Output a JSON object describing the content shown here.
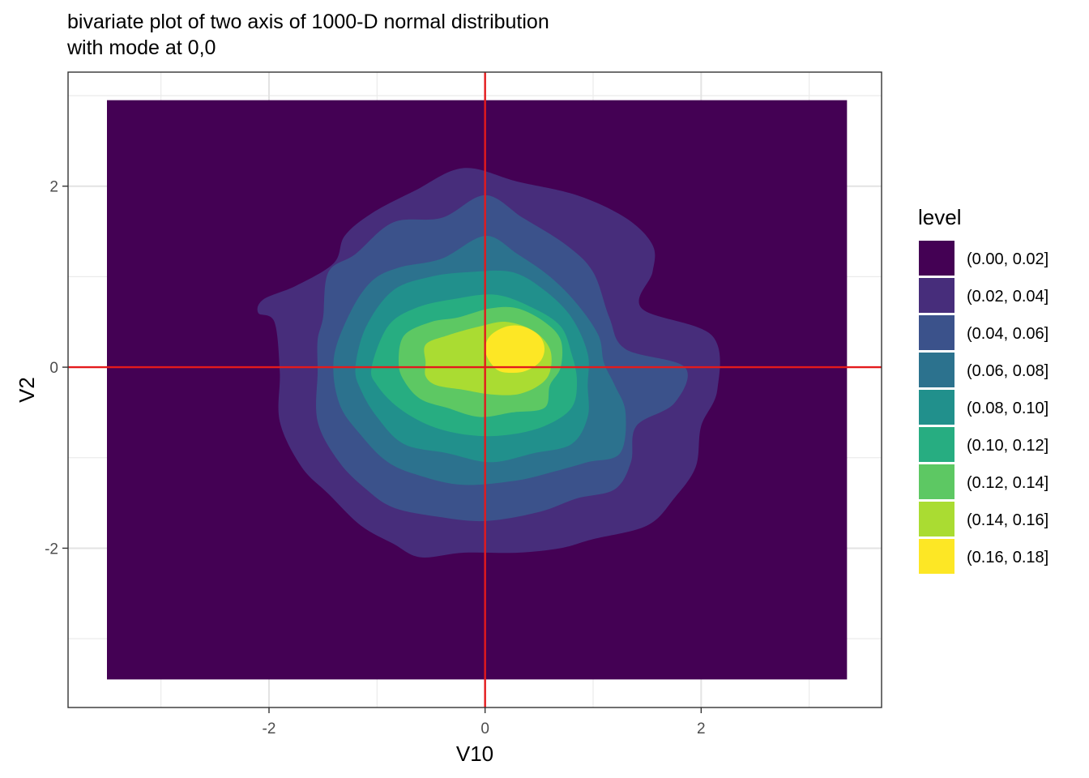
{
  "chart_data": {
    "type": "contour",
    "title_lines": [
      "bivariate plot of two axis of 1000-D normal distribution",
      "with mode at 0,0"
    ],
    "xlabel": "V10",
    "ylabel": "V2",
    "xlim": [
      -3.86,
      3.67
    ],
    "ylim": [
      -3.76,
      3.26
    ],
    "x_ticks": [
      -2,
      0,
      2
    ],
    "x_tick_labels": [
      "-2",
      "0",
      "2"
    ],
    "y_ticks": [
      -2,
      0,
      2
    ],
    "y_tick_labels": [
      "-2",
      "0",
      "2"
    ],
    "x_minor_gridlines": [
      -3,
      -1,
      1,
      3
    ],
    "y_minor_gridlines": [
      -3,
      -1,
      1,
      3
    ],
    "grid": true,
    "density_extent": {
      "x": [
        -3.5,
        3.35
      ],
      "y": [
        -3.45,
        2.95
      ]
    },
    "reference_lines": [
      {
        "orientation": "vertical",
        "value": 0,
        "color": "#e41a1c"
      },
      {
        "orientation": "horizontal",
        "value": 0,
        "color": "#e41a1c"
      }
    ],
    "legend": {
      "title": "level",
      "position": "right",
      "entries": [
        {
          "label": "(0.00, 0.02]",
          "color": "#440154"
        },
        {
          "label": "(0.02, 0.04]",
          "color": "#472D7B"
        },
        {
          "label": "(0.04, 0.06]",
          "color": "#3B528B"
        },
        {
          "label": "(0.06, 0.08]",
          "color": "#2C728E"
        },
        {
          "label": "(0.08, 0.10]",
          "color": "#21908C"
        },
        {
          "label": "(0.10, 0.12]",
          "color": "#27AD81"
        },
        {
          "label": "(0.12, 0.14]",
          "color": "#5DC863"
        },
        {
          "label": "(0.14, 0.16]",
          "color": "#AADC32"
        },
        {
          "label": "(0.16, 0.18]",
          "color": "#FDE725"
        }
      ]
    },
    "contour_levels": [
      {
        "level": 0.02,
        "color": "#472D7B",
        "path": [
          [
            -2.05,
            0.75
          ],
          [
            -1.75,
            0.9
          ],
          [
            -1.4,
            1.15
          ],
          [
            -1.3,
            1.45
          ],
          [
            -1.05,
            1.7
          ],
          [
            -0.65,
            1.95
          ],
          [
            -0.2,
            2.2
          ],
          [
            0.3,
            2.05
          ],
          [
            0.85,
            1.9
          ],
          [
            1.3,
            1.65
          ],
          [
            1.55,
            1.35
          ],
          [
            1.55,
            1.05
          ],
          [
            1.45,
            0.65
          ],
          [
            2.1,
            0.35
          ],
          [
            2.15,
            -0.25
          ],
          [
            2.0,
            -0.65
          ],
          [
            1.95,
            -1.1
          ],
          [
            1.75,
            -1.45
          ],
          [
            1.5,
            -1.75
          ],
          [
            1.0,
            -1.9
          ],
          [
            0.7,
            -2.0
          ],
          [
            0.3,
            -2.05
          ],
          [
            -0.2,
            -2.05
          ],
          [
            -0.6,
            -2.1
          ],
          [
            -0.85,
            -1.95
          ],
          [
            -1.15,
            -1.75
          ],
          [
            -1.45,
            -1.4
          ],
          [
            -1.7,
            -1.1
          ],
          [
            -1.9,
            -0.6
          ],
          [
            -1.9,
            -0.05
          ],
          [
            -1.95,
            0.5
          ],
          [
            -2.1,
            0.6
          ]
        ]
      },
      {
        "level": 0.04,
        "color": "#3B528B",
        "path": [
          [
            -1.5,
            0.55
          ],
          [
            -1.45,
            1.05
          ],
          [
            -1.2,
            1.25
          ],
          [
            -0.85,
            1.6
          ],
          [
            -0.4,
            1.65
          ],
          [
            0.0,
            1.9
          ],
          [
            0.35,
            1.65
          ],
          [
            0.75,
            1.35
          ],
          [
            1.0,
            1.05
          ],
          [
            1.15,
            0.55
          ],
          [
            1.3,
            0.2
          ],
          [
            1.85,
            0.0
          ],
          [
            1.75,
            -0.4
          ],
          [
            1.4,
            -0.65
          ],
          [
            1.35,
            -1.05
          ],
          [
            1.2,
            -1.35
          ],
          [
            0.85,
            -1.45
          ],
          [
            0.5,
            -1.6
          ],
          [
            0.0,
            -1.7
          ],
          [
            -0.45,
            -1.65
          ],
          [
            -0.85,
            -1.55
          ],
          [
            -1.1,
            -1.35
          ],
          [
            -1.35,
            -1.05
          ],
          [
            -1.55,
            -0.6
          ],
          [
            -1.55,
            -0.05
          ],
          [
            -1.55,
            0.3
          ]
        ]
      },
      {
        "level": 0.06,
        "color": "#2C728E",
        "path": [
          [
            -1.4,
            0.1
          ],
          [
            -1.25,
            0.6
          ],
          [
            -1.05,
            0.95
          ],
          [
            -0.8,
            1.1
          ],
          [
            -0.4,
            1.2
          ],
          [
            0.0,
            1.45
          ],
          [
            0.3,
            1.25
          ],
          [
            0.6,
            1.0
          ],
          [
            0.85,
            0.7
          ],
          [
            1.05,
            0.35
          ],
          [
            1.1,
            0.05
          ],
          [
            1.2,
            -0.2
          ],
          [
            1.3,
            -0.5
          ],
          [
            1.25,
            -0.95
          ],
          [
            0.95,
            -1.05
          ],
          [
            0.65,
            -1.15
          ],
          [
            0.3,
            -1.25
          ],
          [
            -0.2,
            -1.3
          ],
          [
            -0.6,
            -1.2
          ],
          [
            -0.9,
            -1.05
          ],
          [
            -1.15,
            -0.75
          ],
          [
            -1.35,
            -0.4
          ]
        ]
      },
      {
        "level": 0.08,
        "color": "#21908C",
        "path": [
          [
            -1.2,
            0.0
          ],
          [
            -1.1,
            0.45
          ],
          [
            -0.85,
            0.85
          ],
          [
            -0.5,
            1.0
          ],
          [
            -0.15,
            1.05
          ],
          [
            0.25,
            1.05
          ],
          [
            0.55,
            0.85
          ],
          [
            0.8,
            0.55
          ],
          [
            0.95,
            0.15
          ],
          [
            0.95,
            -0.2
          ],
          [
            0.95,
            -0.55
          ],
          [
            0.8,
            -0.85
          ],
          [
            0.45,
            -0.95
          ],
          [
            0.05,
            -1.05
          ],
          [
            -0.35,
            -0.95
          ],
          [
            -0.75,
            -0.85
          ],
          [
            -1.0,
            -0.55
          ],
          [
            -1.15,
            -0.25
          ]
        ]
      },
      {
        "level": 0.1,
        "color": "#27AD81",
        "path": [
          [
            -1.05,
            0.0
          ],
          [
            -0.9,
            0.45
          ],
          [
            -0.65,
            0.65
          ],
          [
            -0.3,
            0.75
          ],
          [
            0.1,
            0.8
          ],
          [
            0.45,
            0.65
          ],
          [
            0.7,
            0.45
          ],
          [
            0.8,
            0.15
          ],
          [
            0.85,
            -0.15
          ],
          [
            0.8,
            -0.45
          ],
          [
            0.55,
            -0.65
          ],
          [
            0.2,
            -0.75
          ],
          [
            -0.15,
            -0.75
          ],
          [
            -0.5,
            -0.65
          ],
          [
            -0.8,
            -0.45
          ],
          [
            -1.0,
            -0.2
          ]
        ]
      },
      {
        "level": 0.12,
        "color": "#5DC863",
        "path": [
          [
            -0.8,
            0.05
          ],
          [
            -0.75,
            0.35
          ],
          [
            -0.5,
            0.5
          ],
          [
            -0.25,
            0.55
          ],
          [
            0.05,
            0.65
          ],
          [
            0.3,
            0.65
          ],
          [
            0.55,
            0.5
          ],
          [
            0.7,
            0.3
          ],
          [
            0.7,
            0.0
          ],
          [
            0.6,
            -0.2
          ],
          [
            0.55,
            -0.45
          ],
          [
            0.25,
            -0.5
          ],
          [
            -0.05,
            -0.55
          ],
          [
            -0.35,
            -0.45
          ],
          [
            -0.6,
            -0.35
          ],
          [
            -0.75,
            -0.15
          ]
        ]
      },
      {
        "level": 0.14,
        "color": "#AADC32",
        "path": [
          [
            -0.55,
            0.05
          ],
          [
            -0.55,
            0.25
          ],
          [
            -0.35,
            0.35
          ],
          [
            -0.05,
            0.45
          ],
          [
            0.2,
            0.5
          ],
          [
            0.45,
            0.4
          ],
          [
            0.6,
            0.2
          ],
          [
            0.6,
            -0.05
          ],
          [
            0.5,
            -0.2
          ],
          [
            0.3,
            -0.3
          ],
          [
            0.05,
            -0.3
          ],
          [
            -0.2,
            -0.25
          ],
          [
            -0.45,
            -0.2
          ],
          [
            -0.55,
            -0.1
          ]
        ]
      },
      {
        "level": 0.16,
        "color": "#FDE725",
        "path": [
          [
            0.0,
            0.2
          ],
          [
            0.05,
            0.35
          ],
          [
            0.2,
            0.45
          ],
          [
            0.35,
            0.45
          ],
          [
            0.5,
            0.35
          ],
          [
            0.55,
            0.2
          ],
          [
            0.5,
            0.05
          ],
          [
            0.35,
            -0.05
          ],
          [
            0.15,
            -0.05
          ],
          [
            0.05,
            0.05
          ]
        ]
      }
    ]
  }
}
